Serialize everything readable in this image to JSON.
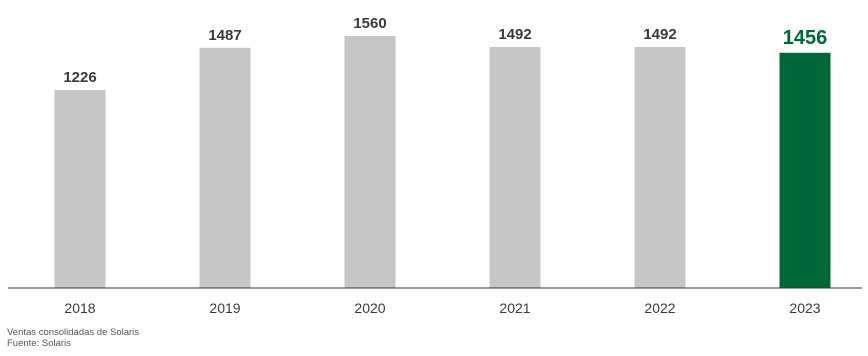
{
  "chart_data": {
    "type": "bar",
    "categories": [
      "2018",
      "2019",
      "2020",
      "2021",
      "2022",
      "2023"
    ],
    "values": [
      1226,
      1487,
      1560,
      1492,
      1492,
      1456
    ],
    "data_labels": [
      "1226",
      "1487",
      "1560",
      "1492",
      "1492",
      "1456"
    ],
    "title": "",
    "xlabel": "",
    "ylabel": "",
    "ylim": [
      0,
      1560
    ],
    "grid": false,
    "legend": "none",
    "highlight_index": 5
  },
  "colors": {
    "bar_default": "#c6c6c6",
    "bar_highlight": "#006838",
    "label_default": "#3a3a3a",
    "label_highlight": "#006838",
    "axis_line": "#333333",
    "tick_label": "#3a3a3a"
  },
  "footnotes": {
    "description": "Ventas consolidadas de Solaris",
    "source": "Fuente: Solaris"
  }
}
